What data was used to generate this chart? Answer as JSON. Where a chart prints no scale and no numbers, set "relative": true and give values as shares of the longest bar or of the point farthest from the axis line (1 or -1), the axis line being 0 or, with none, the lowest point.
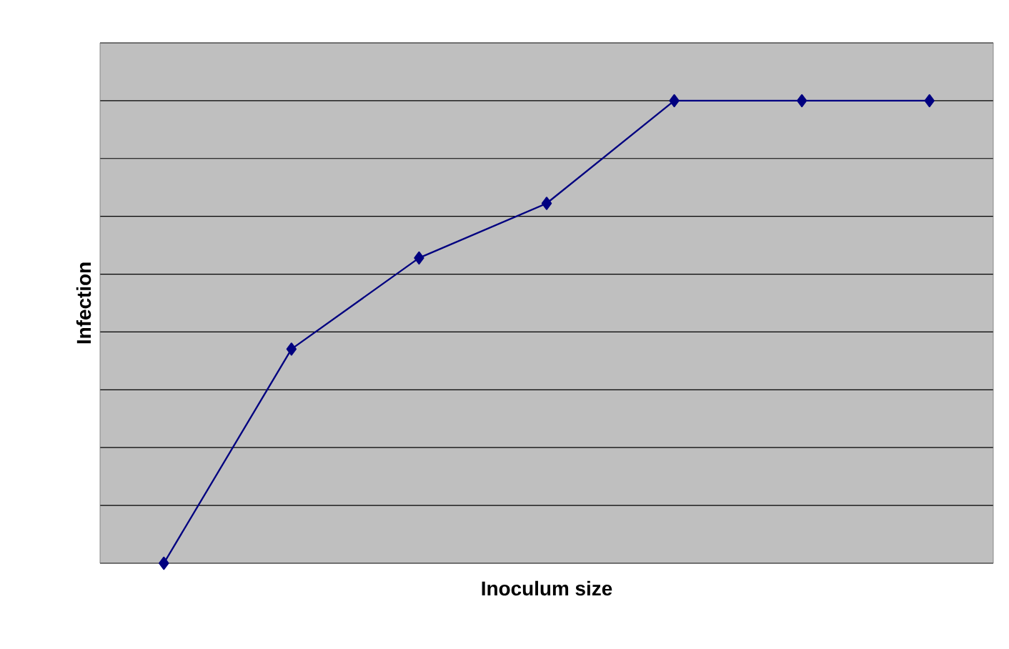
{
  "chart_data": {
    "type": "line",
    "xlabel": "Inoculum size",
    "ylabel": "Infection",
    "relative": true,
    "categories": [
      null,
      null,
      null,
      null,
      null,
      null,
      null
    ],
    "series": [
      {
        "color": "#000080",
        "values": [
          0,
          0.463,
          0.66,
          0.778,
          1,
          1,
          1
        ]
      }
    ],
    "grid": "y",
    "marker": "diamond",
    "line_style": "solid"
  }
}
